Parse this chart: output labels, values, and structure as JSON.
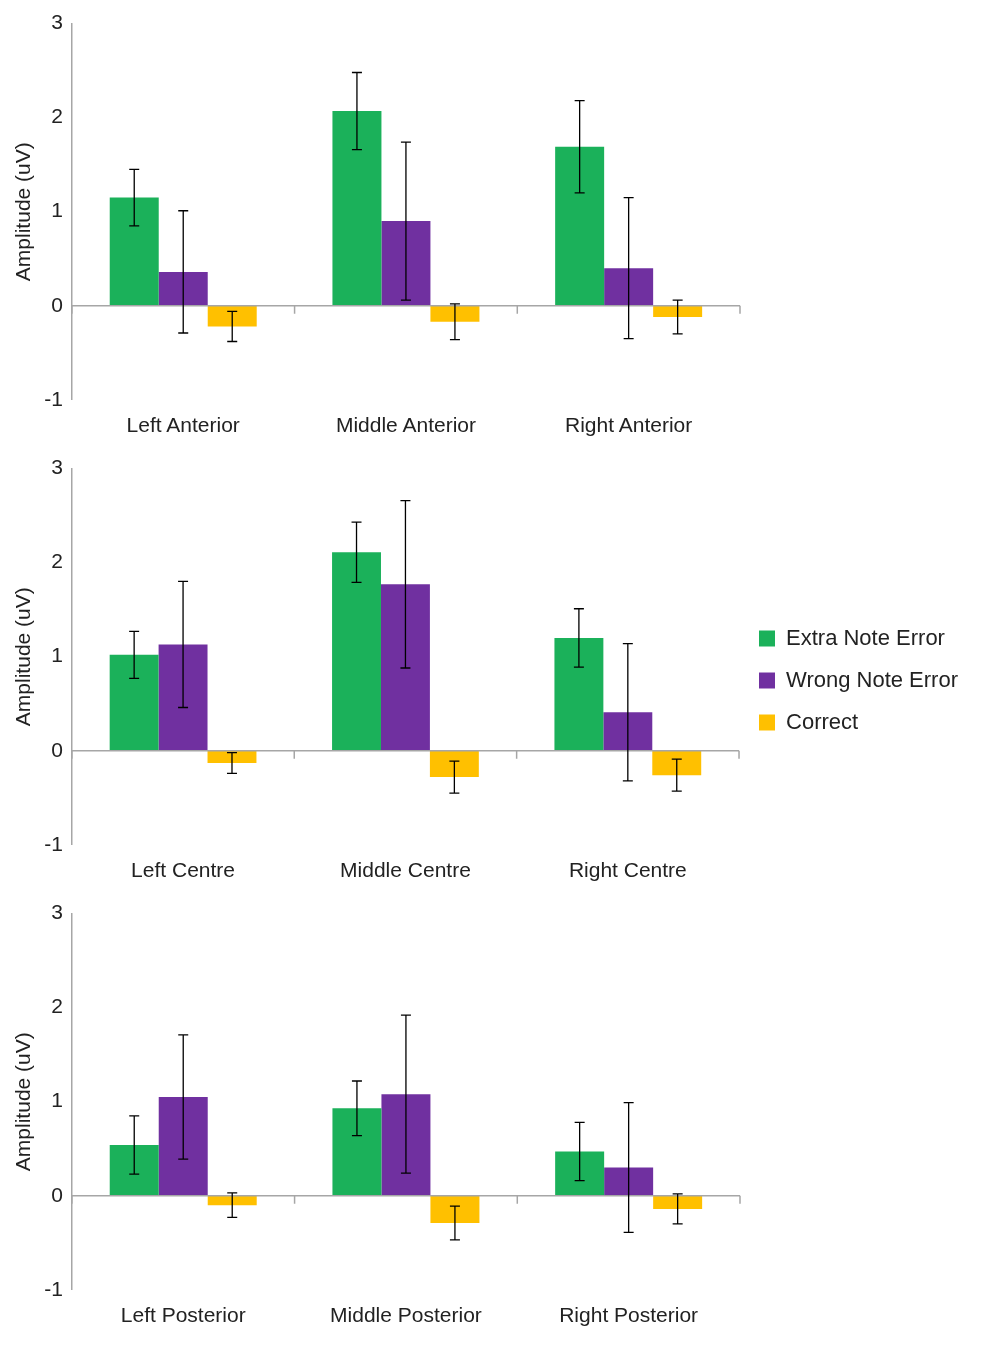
{
  "chart_data": [
    {
      "type": "bar",
      "categories": [
        "Left Anterior",
        "Middle Anterior",
        "Right Anterior"
      ],
      "ylabel": "Amplitude (uV)",
      "ylim": [
        -1,
        3
      ],
      "yticks": [
        -1,
        0,
        1,
        2,
        3
      ],
      "legend": false,
      "series": [
        {
          "color": "#1bb15a",
          "values": [
            1.15,
            2.07,
            1.69
          ],
          "errors": [
            0.3,
            0.41,
            0.49
          ]
        },
        {
          "color": "#7030a0",
          "values": [
            0.36,
            0.9,
            0.4
          ],
          "errors": [
            0.65,
            0.84,
            0.75
          ]
        },
        {
          "color": "#ffc000",
          "values": [
            -0.22,
            -0.17,
            -0.12
          ],
          "errors": [
            0.16,
            0.19,
            0.18
          ]
        }
      ]
    },
    {
      "type": "bar",
      "categories": [
        "Left Centre",
        "Middle Centre",
        "Right Centre"
      ],
      "ylabel": "Amplitude (uV)",
      "ylim": [
        -1,
        3
      ],
      "yticks": [
        -1,
        0,
        1,
        2,
        3
      ],
      "legend": "right",
      "series": [
        {
          "name": "Extra Note Error",
          "color": "#1bb15a",
          "values": [
            1.02,
            2.11,
            1.2
          ],
          "errors": [
            0.25,
            0.32,
            0.31
          ]
        },
        {
          "name": "Wrong Note Error",
          "color": "#7030a0",
          "values": [
            1.13,
            1.77,
            0.41
          ],
          "errors": [
            0.67,
            0.89,
            0.73
          ]
        },
        {
          "name": "Correct",
          "color": "#ffc000",
          "values": [
            -0.13,
            -0.28,
            -0.26
          ],
          "errors": [
            0.11,
            0.17,
            0.17
          ]
        }
      ]
    },
    {
      "type": "bar",
      "categories": [
        "Left Posterior",
        "Middle Posterior",
        "Right Posterior"
      ],
      "ylabel": "Amplitude (uV)",
      "ylim": [
        -1,
        3
      ],
      "yticks": [
        -1,
        0,
        1,
        2,
        3
      ],
      "legend": false,
      "series": [
        {
          "color": "#1bb15a",
          "values": [
            0.54,
            0.93,
            0.47
          ],
          "errors": [
            0.31,
            0.29,
            0.31
          ]
        },
        {
          "color": "#7030a0",
          "values": [
            1.05,
            1.08,
            0.3
          ],
          "errors": [
            0.66,
            0.84,
            0.69
          ]
        },
        {
          "color": "#ffc000",
          "values": [
            -0.1,
            -0.29,
            -0.14
          ],
          "errors": [
            0.13,
            0.18,
            0.16
          ]
        }
      ]
    }
  ]
}
